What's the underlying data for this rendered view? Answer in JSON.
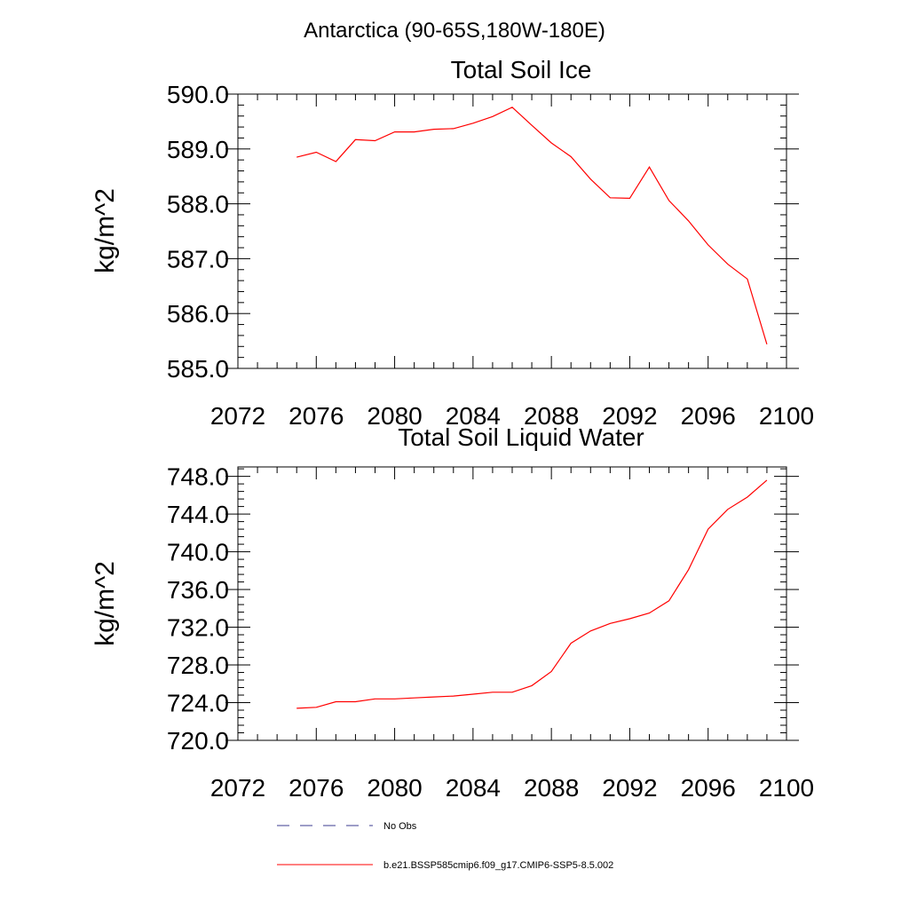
{
  "figure_title": "Antarctica (90-65S,180W-180E)",
  "legend": [
    {
      "label": "No Obs",
      "color": "#3b3b8f",
      "style": "dashed"
    },
    {
      "label": "b.e21.BSSP585cmip6.f09_g17.CMIP6-SSP5-8.5.002",
      "color": "#ff0000",
      "style": "solid"
    }
  ],
  "chart_data": [
    {
      "type": "line",
      "title": "Total Soil Ice",
      "xlabel": "",
      "ylabel": "kg/m^2",
      "xlim": [
        2072,
        2100
      ],
      "ylim": [
        585.0,
        590.0
      ],
      "xticks": [
        "2072",
        "2076",
        "2080",
        "2084",
        "2088",
        "2092",
        "2096",
        "2100"
      ],
      "yticks": [
        "585.0",
        "586.0",
        "587.0",
        "588.0",
        "589.0",
        "590.0"
      ],
      "x": [
        2075,
        2076,
        2077,
        2078,
        2079,
        2080,
        2081,
        2082,
        2083,
        2084,
        2085,
        2086,
        2087,
        2088,
        2089,
        2090,
        2091,
        2092,
        2093,
        2094,
        2095,
        2096,
        2097,
        2098,
        2099
      ],
      "series": [
        {
          "color": "#ff0000",
          "values": [
            588.85,
            588.94,
            588.77,
            589.17,
            589.15,
            589.31,
            589.31,
            589.36,
            589.37,
            589.47,
            589.59,
            589.76,
            589.43,
            589.11,
            588.86,
            588.45,
            588.11,
            588.1,
            588.67,
            588.06,
            587.69,
            587.25,
            586.9,
            586.63,
            585.44
          ]
        }
      ]
    },
    {
      "type": "line",
      "title": "Total Soil Liquid Water",
      "xlabel": "",
      "ylabel": "kg/m^2",
      "xlim": [
        2072,
        2100
      ],
      "ylim": [
        720.0,
        749.0
      ],
      "xticks": [
        "2072",
        "2076",
        "2080",
        "2084",
        "2088",
        "2092",
        "2096",
        "2100"
      ],
      "yticks": [
        "720.0",
        "724.0",
        "728.0",
        "732.0",
        "736.0",
        "740.0",
        "744.0",
        "748.0"
      ],
      "x": [
        2075,
        2076,
        2077,
        2078,
        2079,
        2080,
        2081,
        2082,
        2083,
        2084,
        2085,
        2086,
        2087,
        2088,
        2089,
        2090,
        2091,
        2092,
        2093,
        2094,
        2095,
        2096,
        2097,
        2098,
        2099
      ],
      "series": [
        {
          "color": "#ff0000",
          "values": [
            723.4,
            723.5,
            724.1,
            724.1,
            724.4,
            724.4,
            724.5,
            724.6,
            724.7,
            724.9,
            725.1,
            725.1,
            725.8,
            727.3,
            730.3,
            731.6,
            732.4,
            732.9,
            733.5,
            734.8,
            738.1,
            742.4,
            744.5,
            745.8,
            747.6
          ]
        }
      ]
    }
  ]
}
